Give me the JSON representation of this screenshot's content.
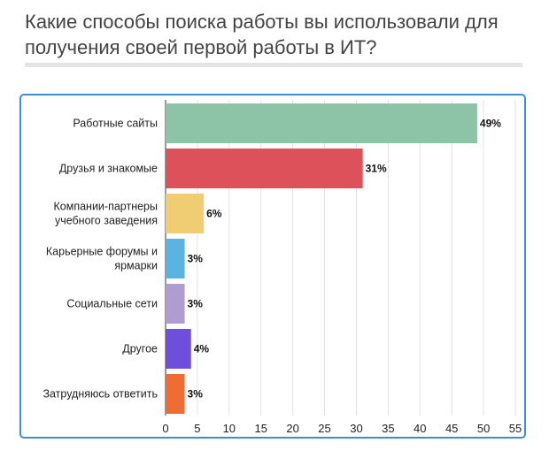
{
  "page": {
    "title": "Какие способы поиска работы вы использовали для получения своей первой работы в ИТ?"
  },
  "chart_data": {
    "type": "bar",
    "orientation": "horizontal",
    "categories": [
      [
        "Работные сайты"
      ],
      [
        "Друзья и знакомые"
      ],
      [
        "Компании-партнеры",
        "учебного заведения"
      ],
      [
        "Карьерные форумы и",
        "ярмарки"
      ],
      [
        "Социальные сети"
      ],
      [
        "Другое"
      ],
      [
        "Затрудняюсь ответить"
      ]
    ],
    "values": [
      49,
      31,
      6,
      3,
      3,
      4,
      3
    ],
    "value_labels": [
      "49%",
      "31%",
      "6%",
      "3%",
      "3%",
      "4%",
      "3%"
    ],
    "colors": [
      "#8dc3a7",
      "#dc515a",
      "#f0cd72",
      "#5ab4e2",
      "#b09dcf",
      "#6d4fdc",
      "#ef6c35"
    ],
    "x_ticks": [
      0,
      5,
      10,
      15,
      20,
      25,
      30,
      35,
      40,
      45,
      50,
      55
    ],
    "xlim": [
      0,
      55
    ],
    "grid": true
  }
}
